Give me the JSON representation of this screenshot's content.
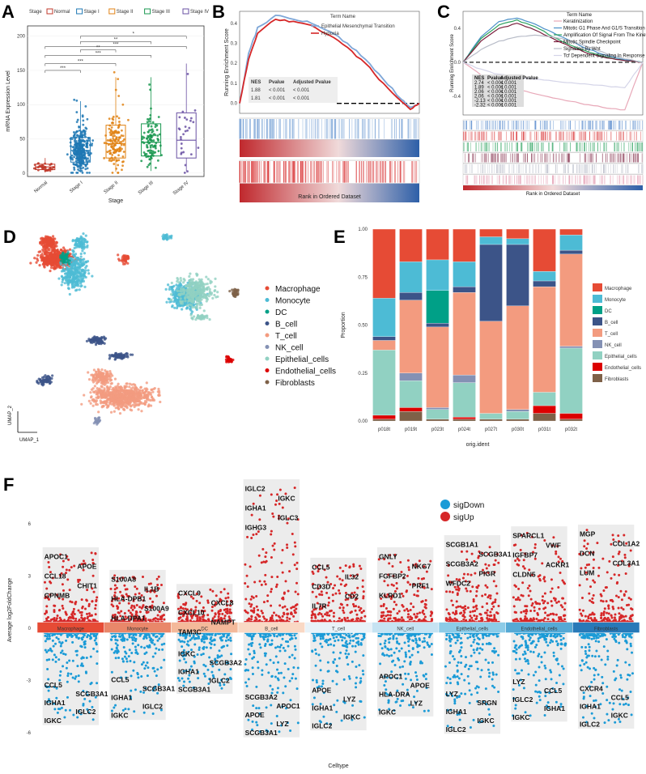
{
  "panel_labels": {
    "A": "A",
    "B": "B",
    "C": "C",
    "D": "D",
    "E": "E",
    "F": "F"
  },
  "colors": {
    "normal": "#c0392b",
    "stage1": "#1f78b4",
    "stage2": "#e08214",
    "stage3": "#1a9850",
    "stage4": "#6a51a3",
    "macrophage": "#e64b35",
    "monocyte": "#4dbbd5",
    "dc": "#00a087",
    "bcell": "#3c5488",
    "tcell": "#f39b7f",
    "nkcell": "#8491b4",
    "epithelial": "#91d1c2",
    "endothelial": "#dc0000",
    "fibroblasts": "#7e6148",
    "sigDown": "#1b9bd7",
    "sigUp": "#d62728"
  },
  "chart_data": [
    {
      "panel": "A",
      "type": "box",
      "legend_title": "Stage",
      "categories": [
        "Normal",
        "Stage I",
        "Stage II",
        "Stage III",
        "Stage IV"
      ],
      "stats": [
        {
          "q1": 5,
          "median": 9,
          "q3": 13,
          "low": 1,
          "high": 22
        },
        {
          "q1": 16,
          "median": 33,
          "q3": 52,
          "low": 1,
          "high": 105
        },
        {
          "q1": 22,
          "median": 43,
          "q3": 70,
          "low": 2,
          "high": 140
        },
        {
          "q1": 25,
          "median": 45,
          "q3": 72,
          "low": 3,
          "high": 140
        },
        {
          "q1": 22,
          "median": 48,
          "q3": 88,
          "low": 3,
          "high": 160
        }
      ],
      "ylabel": "mRNA Expression Level",
      "xlabel": "Stage",
      "yticks": [
        0,
        50,
        100,
        150,
        200
      ],
      "ylim": [
        -5,
        215
      ],
      "significance": [
        {
          "from": 0,
          "to": 1,
          "label": "***"
        },
        {
          "from": 0,
          "to": 2,
          "label": "***"
        },
        {
          "from": 0,
          "to": 3,
          "label": "***"
        },
        {
          "from": 0,
          "to": 4,
          "label": "***"
        },
        {
          "from": 1,
          "to": 2,
          "label": "**"
        },
        {
          "from": 1,
          "to": 3,
          "label": "**"
        },
        {
          "from": 1,
          "to": 4,
          "label": "*"
        }
      ]
    },
    {
      "panel": "B",
      "type": "line",
      "legend_title": "Term Name",
      "series": [
        {
          "name": "Epithelial Mesenchymal Transition",
          "x": [
            0,
            0.05,
            0.1,
            0.2,
            0.3,
            0.4,
            0.5,
            0.6,
            0.7,
            0.8,
            0.9,
            0.95,
            1
          ],
          "y": [
            0,
            0.25,
            0.38,
            0.44,
            0.42,
            0.4,
            0.36,
            0.3,
            0.22,
            0.12,
            0.02,
            -0.02,
            0
          ]
        },
        {
          "name": "Hypoxia",
          "x": [
            0,
            0.05,
            0.1,
            0.2,
            0.3,
            0.4,
            0.5,
            0.6,
            0.7,
            0.8,
            0.9,
            0.95,
            1
          ],
          "y": [
            0,
            0.22,
            0.35,
            0.42,
            0.41,
            0.39,
            0.34,
            0.28,
            0.2,
            0.1,
            0.01,
            -0.03,
            0
          ]
        }
      ],
      "ylabel": "Running Enrichment Score",
      "xlabel": "Rank in Ordered Dataset",
      "yticks": [
        0.0,
        0.1,
        0.2,
        0.3,
        0.4
      ],
      "ylim": [
        -0.05,
        0.46
      ],
      "table": {
        "headers": [
          "NES",
          "Pvalue",
          "Adjusted Pvalue"
        ],
        "rows": [
          [
            "1.88",
            "< 0.001",
            "< 0.001"
          ],
          [
            "1.81",
            "< 0.001",
            "< 0.001"
          ]
        ]
      }
    },
    {
      "panel": "C",
      "type": "line",
      "legend_title": "Term Name",
      "series": [
        {
          "name": "Keratinization",
          "x": [
            0,
            0.1,
            0.2,
            0.3,
            0.4,
            0.5,
            0.6,
            0.7,
            0.8,
            0.9,
            1
          ],
          "y": [
            0,
            -0.15,
            -0.25,
            -0.32,
            -0.37,
            -0.42,
            -0.46,
            -0.5,
            -0.54,
            -0.56,
            0
          ]
        },
        {
          "name": "Mitotic G1 Phase And G1/S Transition",
          "x": [
            0,
            0.1,
            0.2,
            0.3,
            0.4,
            0.5,
            0.6,
            0.7,
            0.8,
            0.9,
            1
          ],
          "y": [
            0,
            0.3,
            0.48,
            0.52,
            0.45,
            0.35,
            0.25,
            0.15,
            0.08,
            0.03,
            0
          ]
        },
        {
          "name": "Amplification Of Signal From The Kinetochores",
          "x": [
            0,
            0.1,
            0.2,
            0.3,
            0.4,
            0.5,
            0.6,
            0.7,
            0.8,
            0.9,
            1
          ],
          "y": [
            0,
            0.28,
            0.44,
            0.5,
            0.42,
            0.3,
            0.2,
            0.12,
            0.06,
            0.02,
            0
          ]
        },
        {
          "name": "Mitotic Spindle Checkpoint",
          "x": [
            0,
            0.1,
            0.2,
            0.3,
            0.4,
            0.5,
            0.6,
            0.7,
            0.8,
            0.9,
            1
          ],
          "y": [
            0,
            0.25,
            0.4,
            0.46,
            0.38,
            0.28,
            0.18,
            0.1,
            0.05,
            0.02,
            0
          ]
        },
        {
          "name": "Signaling By Wnt",
          "x": [
            0,
            0.1,
            0.2,
            0.3,
            0.4,
            0.5,
            0.6,
            0.7,
            0.8,
            0.9,
            1
          ],
          "y": [
            0,
            0.15,
            0.25,
            0.3,
            0.32,
            0.3,
            0.25,
            0.18,
            0.1,
            0.04,
            0
          ]
        },
        {
          "name": "Tcf Dependent Signaling In Response To Wnt",
          "x": [
            0,
            0.1,
            0.2,
            0.3,
            0.4,
            0.5,
            0.6,
            0.7,
            0.8,
            0.9,
            1
          ],
          "y": [
            0,
            -0.08,
            -0.14,
            -0.18,
            -0.2,
            -0.22,
            -0.24,
            -0.26,
            -0.28,
            -0.3,
            0
          ]
        }
      ],
      "ylabel": "Running Enrichment Score",
      "xlabel": "Rank in Ordered Dataset",
      "yticks": [
        -0.4,
        0.0,
        0.4
      ],
      "ylim": [
        -0.62,
        0.6
      ],
      "table": {
        "headers": [
          "NES",
          "Pvalue",
          "Adjusted Pvalue"
        ],
        "rows": [
          [
            "2.74",
            "< 0.001",
            "< 0.001"
          ],
          [
            "1.89",
            "< 0.001",
            "< 0.001"
          ],
          [
            "2.06",
            "< 0.001",
            "< 0.001"
          ],
          [
            "2.06",
            "< 0.001",
            "< 0.001"
          ],
          [
            "-2.13",
            "< 0.001",
            "< 0.001"
          ],
          [
            "-2.32",
            "< 0.001",
            "< 0.001"
          ]
        ]
      }
    },
    {
      "panel": "D",
      "type": "scatter",
      "xlabel": "UMAP_1",
      "ylabel": "UMAP_2",
      "legend": [
        "Macrophage",
        "Monocyte",
        "DC",
        "B_cell",
        "T_cell",
        "NK_cell",
        "Epithelial_cells",
        "Endothelial_cells",
        "Fibroblasts"
      ]
    },
    {
      "panel": "E",
      "type": "bar",
      "stacked": true,
      "categories": [
        "p018t",
        "p019t",
        "p023t",
        "p024t",
        "p027t",
        "p030t",
        "p031t",
        "p032t"
      ],
      "series": [
        {
          "name": "Fibroblasts",
          "values": [
            0.01,
            0.05,
            0.01,
            0.01,
            0.01,
            0.01,
            0.04,
            0.01
          ]
        },
        {
          "name": "Endothelial_cells",
          "values": [
            0.02,
            0.02,
            0.0,
            0.01,
            0.0,
            0.0,
            0.04,
            0.03
          ]
        },
        {
          "name": "Epithelial_cells",
          "values": [
            0.34,
            0.14,
            0.05,
            0.18,
            0.03,
            0.04,
            0.07,
            0.34
          ]
        },
        {
          "name": "NK_cell",
          "values": [
            0.0,
            0.04,
            0.01,
            0.04,
            0.0,
            0.01,
            0.0,
            0.01
          ]
        },
        {
          "name": "T_cell",
          "values": [
            0.05,
            0.38,
            0.42,
            0.43,
            0.48,
            0.54,
            0.55,
            0.48
          ]
        },
        {
          "name": "B_cell",
          "values": [
            0.02,
            0.04,
            0.02,
            0.03,
            0.4,
            0.32,
            0.03,
            0.02
          ]
        },
        {
          "name": "DC",
          "values": [
            0.0,
            0.0,
            0.17,
            0.0,
            0.0,
            0.0,
            0.0,
            0.0
          ]
        },
        {
          "name": "Monocyte",
          "values": [
            0.2,
            0.16,
            0.16,
            0.13,
            0.04,
            0.03,
            0.05,
            0.08
          ]
        },
        {
          "name": "Macrophage",
          "values": [
            0.36,
            0.17,
            0.16,
            0.17,
            0.04,
            0.05,
            0.22,
            0.03
          ]
        }
      ],
      "ylabel": "Proportion",
      "xlabel": "orig.ident",
      "yticks": [
        0.0,
        0.25,
        0.5,
        0.75,
        1.0
      ],
      "ylim": [
        0,
        1
      ]
    },
    {
      "panel": "F",
      "type": "scatter",
      "xlabel": "Celltype",
      "ylabel": "Average log2FoldChange",
      "yticks": [
        -6,
        -3,
        0,
        3,
        6
      ],
      "ylim": [
        -6.5,
        8.5
      ],
      "legend": [
        "sigDown",
        "sigUp"
      ],
      "categories": [
        "Macrophage",
        "Monocyte",
        "DC",
        "B_cell",
        "T_cell",
        "NK_cell",
        "Epithelial_cells",
        "Endothelial_cells",
        "Fibroblasts"
      ],
      "ranges": [
        [
          -5.3,
          4.3
        ],
        [
          -5.0,
          3.0
        ],
        [
          -3.5,
          2.2
        ],
        [
          -6.0,
          8.2
        ],
        [
          -5.6,
          3.7
        ],
        [
          -4.8,
          4.3
        ],
        [
          -5.8,
          5.0
        ],
        [
          -5.1,
          5.5
        ],
        [
          -5.5,
          5.6
        ]
      ],
      "up_genes": [
        [
          "APOC1",
          "APOE",
          "CCL18",
          "CHIT1",
          "GPNMB"
        ],
        [
          "S100A8",
          "IL1B",
          "HLA-DPB1",
          "S100A9",
          "HLA-DPA1"
        ],
        [
          "CXCL9",
          "CXCL8",
          "CXCL10",
          "NAMPT",
          "TAM3C"
        ],
        [
          "IGLC2",
          "IGKC",
          "IGHA1",
          "IGLC3",
          "IGHG3"
        ],
        [
          "CCL5",
          "IL32",
          "CD3D",
          "CD2",
          "IL7R"
        ],
        [
          "GNLY",
          "NKG7",
          "FGFBP2",
          "PRF1",
          "KLRD1"
        ],
        [
          "SCGB1A1",
          "SCGB3A1",
          "SCGB3A2",
          "PIGR",
          "WFDC2"
        ],
        [
          "SPARCL1",
          "VWF",
          "IGFBP7",
          "ACKR1",
          "CLDN5"
        ],
        [
          "MGP",
          "COL1A2",
          "DCN",
          "COL3A1",
          "LUM"
        ]
      ],
      "down_genes": [
        [
          "CCL5",
          "SCGB3A1",
          "IGHA1",
          "IGLC2",
          "IGKC"
        ],
        [
          "CCL5",
          "SCGB3A1",
          "IGHA1",
          "IGLC2",
          "IGKC"
        ],
        [
          "IGKC",
          "SCGB3A2",
          "IGHA1",
          "IGLC2",
          "SCGB3A1"
        ],
        [
          "SCGB3A2",
          "APOC1",
          "APOE",
          "LYZ",
          "SCGB3A1"
        ],
        [
          "APOE",
          "LYZ",
          "IGHA1",
          "IGKC",
          "IGLC2"
        ],
        [
          "APOC1",
          "APOE",
          "HLA-DRA",
          "LYZ",
          "IGKC"
        ],
        [
          "LYZ",
          "SRGN",
          "IGHA1",
          "IGKC",
          "IGLC2"
        ],
        [
          "LYZ",
          "CCL5",
          "IGLC2",
          "IGHA1",
          "IGKC"
        ],
        [
          "CXCR4",
          "CCL5",
          "IGHA1",
          "IGKC",
          "IGLC2"
        ]
      ]
    }
  ]
}
